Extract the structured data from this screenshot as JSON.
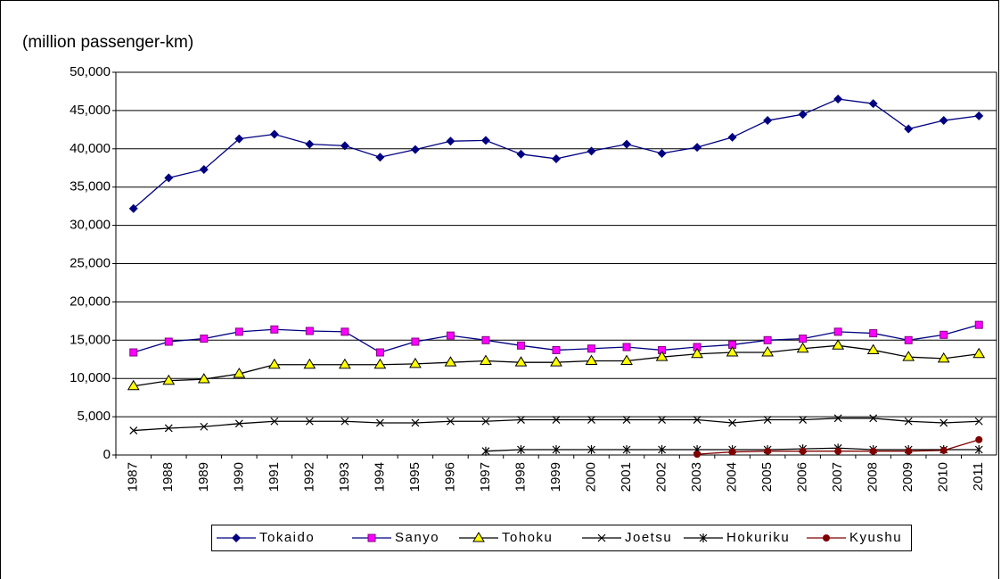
{
  "chart_data": {
    "type": "line",
    "y_label": "(million passenger-km)",
    "categories": [
      "1987",
      "1988",
      "1989",
      "1990",
      "1991",
      "1992",
      "1993",
      "1994",
      "1995",
      "1996",
      "1997",
      "1998",
      "1999",
      "2000",
      "2001",
      "2002",
      "2003",
      "2004",
      "2005",
      "2006",
      "2007",
      "2008",
      "2009",
      "2010",
      "2011"
    ],
    "ylim": [
      0,
      50000
    ],
    "yticks": [
      0,
      {
        "value": 5000,
        "label": "5,000"
      },
      {
        "value": 10000,
        "label": "10,000"
      },
      {
        "value": 15000,
        "label": "15,000"
      },
      {
        "value": 20000,
        "label": "20,000"
      },
      {
        "value": 25000,
        "label": "25,000"
      },
      {
        "value": 30000,
        "label": "30,000"
      },
      {
        "value": 35000,
        "label": "35,000"
      },
      {
        "value": 40000,
        "label": "40,000"
      },
      {
        "value": 45000,
        "label": "45,000"
      },
      {
        "value": 50000,
        "label": "50,000"
      }
    ],
    "grid": true,
    "legend": "bottom",
    "series": [
      {
        "name": "Tokaido",
        "color": "#000080",
        "marker": "diamond",
        "marker_color": "#000080",
        "values": [
          32200,
          36200,
          37300,
          41300,
          41900,
          40600,
          40400,
          38900,
          39900,
          41000,
          41100,
          39300,
          38700,
          39700,
          40600,
          39400,
          40200,
          41500,
          43700,
          44500,
          46500,
          45900,
          42600,
          43700,
          44300
        ]
      },
      {
        "name": "Sanyo",
        "color": "#000080",
        "marker": "square",
        "marker_color": "#ff00ff",
        "values": [
          13400,
          14800,
          15200,
          16100,
          16400,
          16200,
          16100,
          13400,
          14800,
          15600,
          15000,
          14300,
          13700,
          13900,
          14100,
          13700,
          14100,
          14400,
          15000,
          15200,
          16100,
          15900,
          15000,
          15700,
          17000
        ]
      },
      {
        "name": "Tohoku",
        "color": "#000000",
        "marker": "triangle",
        "marker_color": "#ffff00",
        "values": [
          9000,
          9700,
          9900,
          10600,
          11800,
          11800,
          11800,
          11800,
          11900,
          12100,
          12300,
          12100,
          12100,
          12300,
          12300,
          12800,
          13200,
          13400,
          13400,
          13900,
          14300,
          13700,
          12800,
          12600,
          13200
        ]
      },
      {
        "name": "Joetsu",
        "color": "#000000",
        "marker": "x",
        "marker_color": "#000000",
        "values": [
          3200,
          3500,
          3700,
          4100,
          4400,
          4400,
          4400,
          4200,
          4200,
          4400,
          4400,
          4600,
          4600,
          4600,
          4600,
          4600,
          4600,
          4200,
          4600,
          4600,
          4800,
          4800,
          4400,
          4200,
          4400
        ]
      },
      {
        "name": "Hokuriku",
        "color": "#000000",
        "marker": "star",
        "marker_color": "#000000",
        "values": [
          null,
          null,
          null,
          null,
          null,
          null,
          null,
          null,
          null,
          null,
          500,
          700,
          700,
          700,
          700,
          700,
          700,
          700,
          700,
          800,
          900,
          700,
          700,
          700,
          700
        ]
      },
      {
        "name": "Kyushu",
        "color": "#800000",
        "marker": "circle",
        "marker_color": "#800000",
        "values": [
          null,
          null,
          null,
          null,
          null,
          null,
          null,
          null,
          null,
          null,
          null,
          null,
          null,
          null,
          null,
          null,
          100,
          400,
          500,
          500,
          500,
          500,
          500,
          600,
          2000
        ]
      }
    ]
  }
}
